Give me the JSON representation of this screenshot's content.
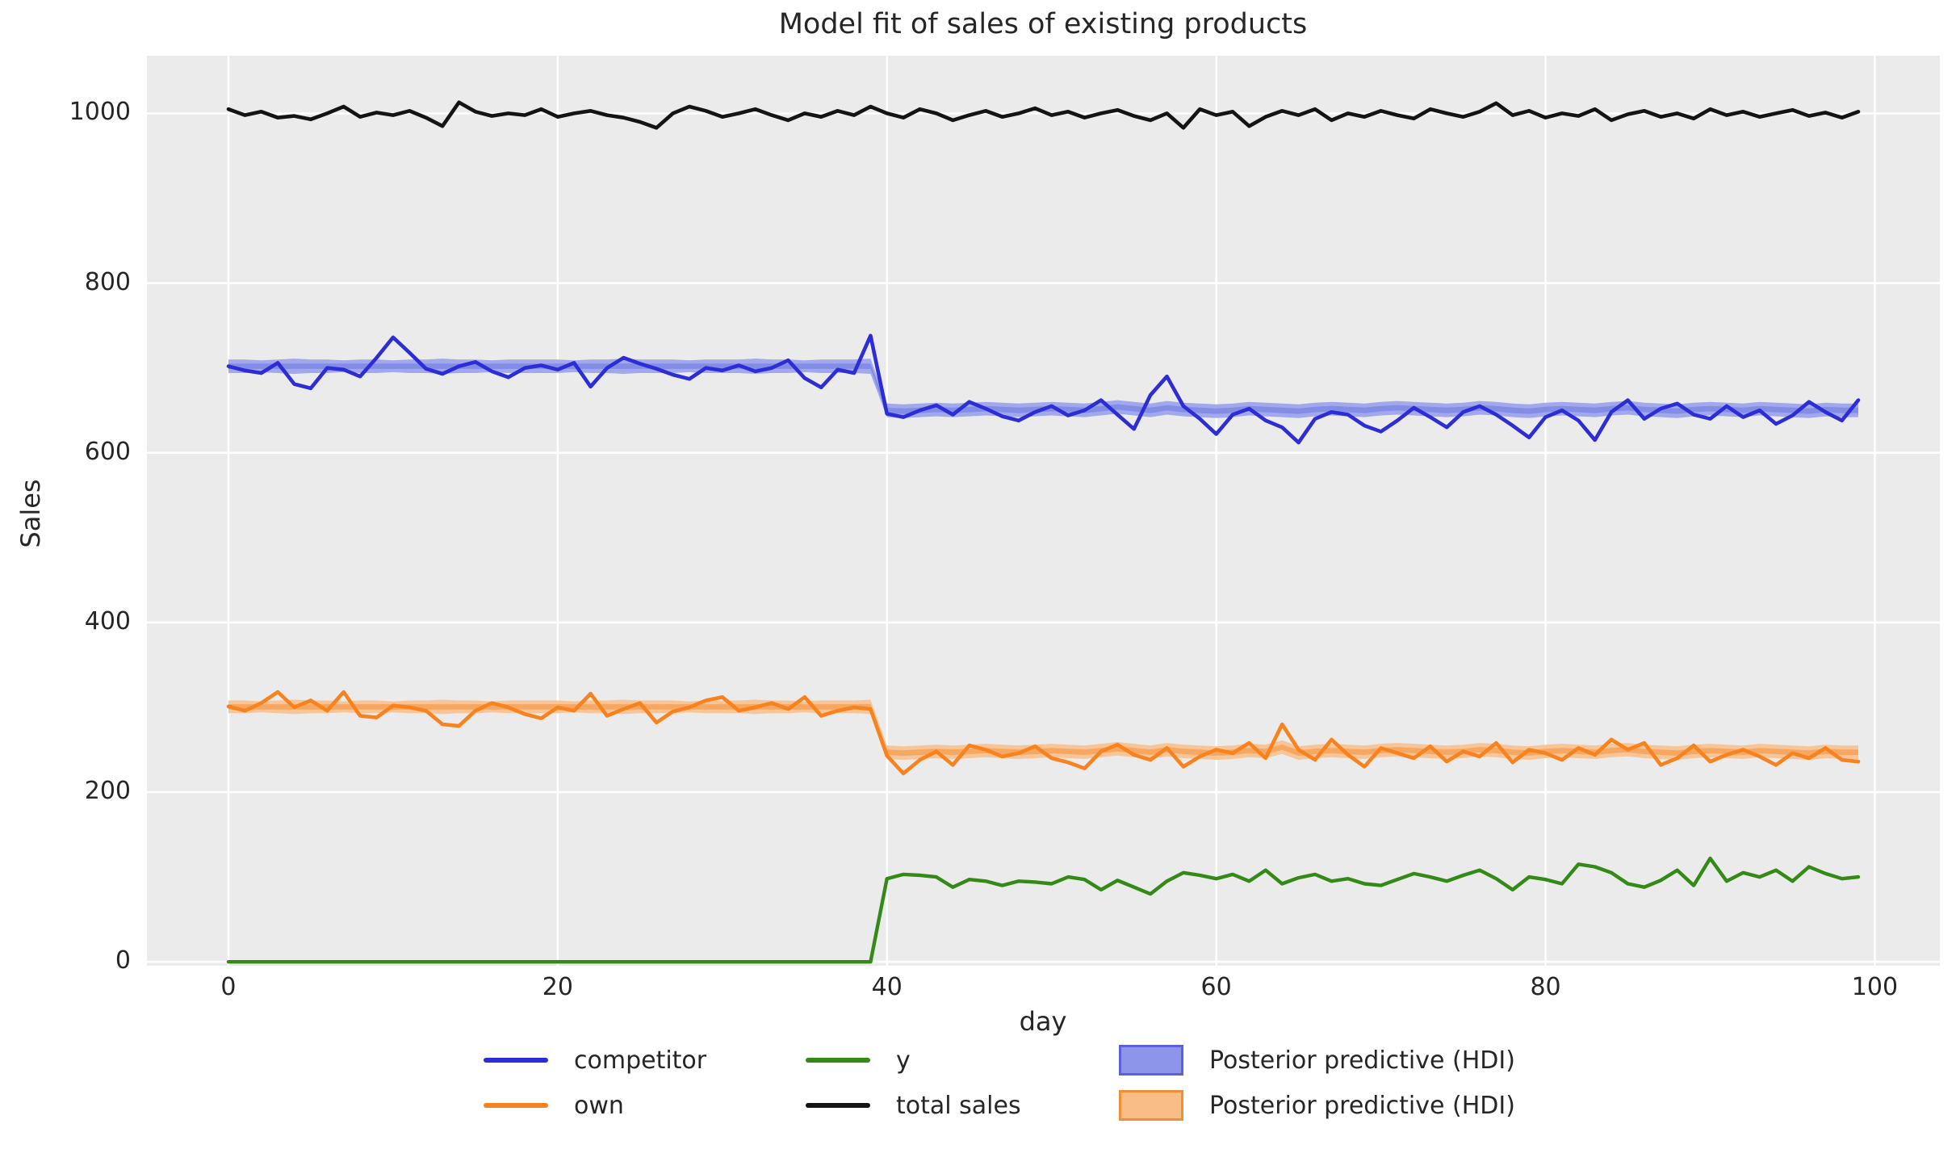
{
  "title": "Model fit of sales of existing products",
  "axes": {
    "xlabel": "day",
    "ylabel": "Sales",
    "x_ticks": [
      0,
      20,
      40,
      60,
      80,
      100
    ],
    "y_ticks": [
      0,
      200,
      400,
      600,
      800,
      1000
    ]
  },
  "colors": {
    "plot_bg": "#ebebeb",
    "grid": "#ffffff",
    "text": "#262626",
    "competitor_line": "#2d2dd5",
    "own_line": "#f8821d",
    "y_line": "#338a16",
    "total_line": "#141414",
    "hdi_blue_fill": "#99a1ec",
    "hdi_blue_core": "#7f89e6",
    "hdi_orange_fill": "#f9c190",
    "hdi_orange_core": "#f5a45c"
  },
  "legend": {
    "items": [
      {
        "label": "competitor",
        "swatch": "line",
        "color": "#2d2dd5",
        "edge": "#2d2dd5"
      },
      {
        "label": "own",
        "swatch": "line",
        "color": "#f8821d",
        "edge": "#f8821d"
      },
      {
        "label": "y",
        "swatch": "line",
        "color": "#338a16",
        "edge": "#338a16"
      },
      {
        "label": "total sales",
        "swatch": "line",
        "color": "#141414",
        "edge": "#141414"
      },
      {
        "label": "Posterior predictive (HDI)",
        "swatch": "patch",
        "color": "#8d95ea",
        "edge": "#5a62d8"
      },
      {
        "label": "Posterior predictive (HDI)",
        "swatch": "patch",
        "color": "#f9bd88",
        "edge": "#ef8f38"
      }
    ]
  },
  "chart_data": {
    "type": "line",
    "title": "Model fit of sales of existing products",
    "xlabel": "day",
    "ylabel": "Sales",
    "x": {
      "start": 0,
      "end": 99,
      "step": 1
    },
    "xlim": [
      -4.95,
      103.95
    ],
    "ylim": [
      -4.6,
      1068
    ],
    "grid": true,
    "legend_position": "below",
    "series": [
      {
        "name": "competitor",
        "color": "#2d2dd5",
        "values": [
          702,
          697,
          694,
          706,
          681,
          676,
          700,
          698,
          690,
          712,
          736,
          718,
          699,
          693,
          702,
          707,
          696,
          689,
          700,
          703,
          698,
          706,
          678,
          700,
          712,
          705,
          699,
          692,
          687,
          700,
          697,
          703,
          696,
          700,
          709,
          688,
          677,
          698,
          694,
          738,
          646,
          642,
          650,
          656,
          645,
          660,
          652,
          643,
          638,
          648,
          655,
          644,
          650,
          662,
          645,
          628,
          668,
          690,
          655,
          640,
          622,
          645,
          652,
          638,
          630,
          612,
          640,
          648,
          645,
          632,
          625,
          638,
          653,
          642,
          630,
          648,
          655,
          645,
          632,
          618,
          642,
          650,
          638,
          615,
          648,
          662,
          640,
          652,
          658,
          645,
          640,
          655,
          642,
          650,
          634,
          644,
          660,
          648,
          638,
          662
        ]
      },
      {
        "name": "own",
        "color": "#f8821d",
        "values": [
          301,
          296,
          305,
          318,
          300,
          308,
          296,
          318,
          290,
          288,
          302,
          300,
          296,
          280,
          278,
          296,
          305,
          300,
          292,
          287,
          300,
          296,
          316,
          290,
          298,
          305,
          282,
          295,
          300,
          308,
          312,
          296,
          300,
          305,
          298,
          312,
          290,
          296,
          300,
          298,
          243,
          222,
          238,
          248,
          232,
          255,
          250,
          242,
          246,
          254,
          240,
          235,
          228,
          248,
          256,
          244,
          238,
          252,
          230,
          242,
          250,
          246,
          258,
          240,
          280,
          250,
          238,
          262,
          244,
          230,
          252,
          246,
          240,
          254,
          236,
          248,
          242,
          258,
          235,
          250,
          246,
          238,
          252,
          244,
          262,
          250,
          258,
          232,
          240,
          255,
          236,
          244,
          250,
          242,
          232,
          246,
          240,
          252,
          238,
          236
        ]
      },
      {
        "name": "y",
        "color": "#338a16",
        "values": [
          0,
          0,
          0,
          0,
          0,
          0,
          0,
          0,
          0,
          0,
          0,
          0,
          0,
          0,
          0,
          0,
          0,
          0,
          0,
          0,
          0,
          0,
          0,
          0,
          0,
          0,
          0,
          0,
          0,
          0,
          0,
          0,
          0,
          0,
          0,
          0,
          0,
          0,
          0,
          0,
          98,
          103,
          102,
          100,
          88,
          97,
          95,
          90,
          95,
          94,
          92,
          100,
          97,
          85,
          96,
          88,
          80,
          95,
          105,
          102,
          98,
          103,
          95,
          108,
          92,
          99,
          103,
          95,
          98,
          92,
          90,
          97,
          104,
          100,
          95,
          102,
          108,
          98,
          85,
          100,
          97,
          92,
          115,
          112,
          105,
          92,
          88,
          96,
          108,
          90,
          122,
          95,
          105,
          100,
          108,
          95,
          112,
          104,
          98,
          100
        ]
      },
      {
        "name": "total sales",
        "color": "#141414",
        "values": [
          1005,
          998,
          1002,
          995,
          997,
          993,
          1000,
          1008,
          996,
          1001,
          998,
          1003,
          995,
          985,
          1013,
          1002,
          997,
          1000,
          998,
          1005,
          996,
          1000,
          1003,
          998,
          995,
          990,
          983,
          1000,
          1008,
          1003,
          996,
          1000,
          1005,
          998,
          992,
          1000,
          996,
          1003,
          998,
          1008,
          1000,
          995,
          1005,
          1000,
          992,
          998,
          1003,
          996,
          1000,
          1006,
          998,
          1002,
          995,
          1000,
          1004,
          997,
          992,
          1000,
          983,
          1005,
          998,
          1002,
          985,
          996,
          1003,
          998,
          1005,
          992,
          1000,
          996,
          1003,
          998,
          994,
          1005,
          1000,
          996,
          1002,
          1012,
          998,
          1003,
          995,
          1000,
          997,
          1005,
          992,
          999,
          1003,
          996,
          1000,
          994,
          1005,
          998,
          1002,
          996,
          1000,
          1004,
          997,
          1001,
          995,
          1002
        ]
      }
    ],
    "bands": [
      {
        "name": "Posterior predictive (HDI)",
        "series": "competitor",
        "fill": "#99a1ec",
        "core": "#7f89e6",
        "lower": [
          694,
          694,
          695,
          694,
          693,
          694,
          694,
          695,
          694,
          694,
          695,
          694,
          694,
          693,
          694,
          694,
          695,
          694,
          694,
          694,
          694,
          695,
          694,
          694,
          693,
          694,
          694,
          694,
          695,
          694,
          694,
          694,
          693,
          694,
          694,
          695,
          694,
          694,
          694,
          693,
          642,
          641,
          642,
          643,
          642,
          643,
          644,
          643,
          642,
          643,
          644,
          643,
          642,
          644,
          646,
          644,
          642,
          645,
          643,
          642,
          641,
          642,
          644,
          643,
          642,
          641,
          643,
          644,
          643,
          642,
          644,
          645,
          644,
          643,
          642,
          643,
          645,
          644,
          642,
          641,
          643,
          644,
          643,
          642,
          644,
          645,
          643,
          642,
          641,
          643,
          644,
          643,
          642,
          644,
          643,
          642,
          641,
          643,
          642,
          642
        ],
        "upper": [
          710,
          710,
          709,
          710,
          711,
          710,
          710,
          709,
          710,
          710,
          709,
          710,
          710,
          711,
          710,
          710,
          709,
          710,
          710,
          710,
          710,
          709,
          710,
          710,
          711,
          710,
          710,
          710,
          709,
          710,
          710,
          710,
          711,
          710,
          710,
          709,
          710,
          710,
          710,
          711,
          658,
          657,
          658,
          659,
          658,
          659,
          660,
          659,
          658,
          659,
          660,
          659,
          658,
          660,
          662,
          660,
          658,
          661,
          659,
          658,
          657,
          658,
          660,
          659,
          658,
          657,
          659,
          660,
          659,
          658,
          660,
          661,
          660,
          659,
          658,
          659,
          661,
          660,
          658,
          657,
          659,
          660,
          659,
          658,
          660,
          661,
          659,
          658,
          657,
          659,
          660,
          659,
          658,
          660,
          659,
          658,
          657,
          659,
          658,
          658
        ]
      },
      {
        "name": "Posterior predictive (HDI)",
        "series": "own",
        "fill": "#f9c190",
        "core": "#f5a45c",
        "lower": [
          293,
          293,
          294,
          293,
          292,
          293,
          293,
          294,
          293,
          293,
          294,
          293,
          293,
          292,
          293,
          293,
          294,
          293,
          293,
          293,
          293,
          294,
          293,
          293,
          292,
          293,
          293,
          293,
          294,
          293,
          293,
          293,
          292,
          293,
          293,
          294,
          293,
          293,
          293,
          292,
          239,
          238,
          239,
          240,
          239,
          240,
          241,
          240,
          239,
          240,
          241,
          240,
          239,
          241,
          243,
          241,
          239,
          242,
          240,
          239,
          238,
          239,
          241,
          240,
          245,
          238,
          240,
          241,
          240,
          239,
          241,
          242,
          241,
          240,
          239,
          240,
          242,
          241,
          239,
          238,
          240,
          241,
          240,
          239,
          241,
          242,
          240,
          239,
          238,
          240,
          241,
          240,
          239,
          241,
          240,
          239,
          238,
          240,
          239,
          239
        ],
        "upper": [
          308,
          308,
          307,
          308,
          309,
          308,
          308,
          307,
          308,
          308,
          307,
          308,
          308,
          309,
          308,
          308,
          307,
          308,
          308,
          308,
          308,
          307,
          308,
          308,
          309,
          308,
          308,
          308,
          307,
          308,
          308,
          308,
          309,
          308,
          308,
          307,
          308,
          308,
          308,
          309,
          255,
          254,
          255,
          256,
          255,
          256,
          257,
          256,
          255,
          256,
          257,
          256,
          255,
          257,
          259,
          257,
          255,
          258,
          256,
          255,
          254,
          255,
          257,
          256,
          261,
          254,
          256,
          257,
          256,
          255,
          257,
          258,
          257,
          256,
          255,
          256,
          258,
          257,
          255,
          254,
          256,
          257,
          256,
          255,
          257,
          258,
          256,
          255,
          254,
          256,
          257,
          256,
          255,
          257,
          256,
          255,
          254,
          256,
          255,
          255
        ]
      }
    ]
  }
}
